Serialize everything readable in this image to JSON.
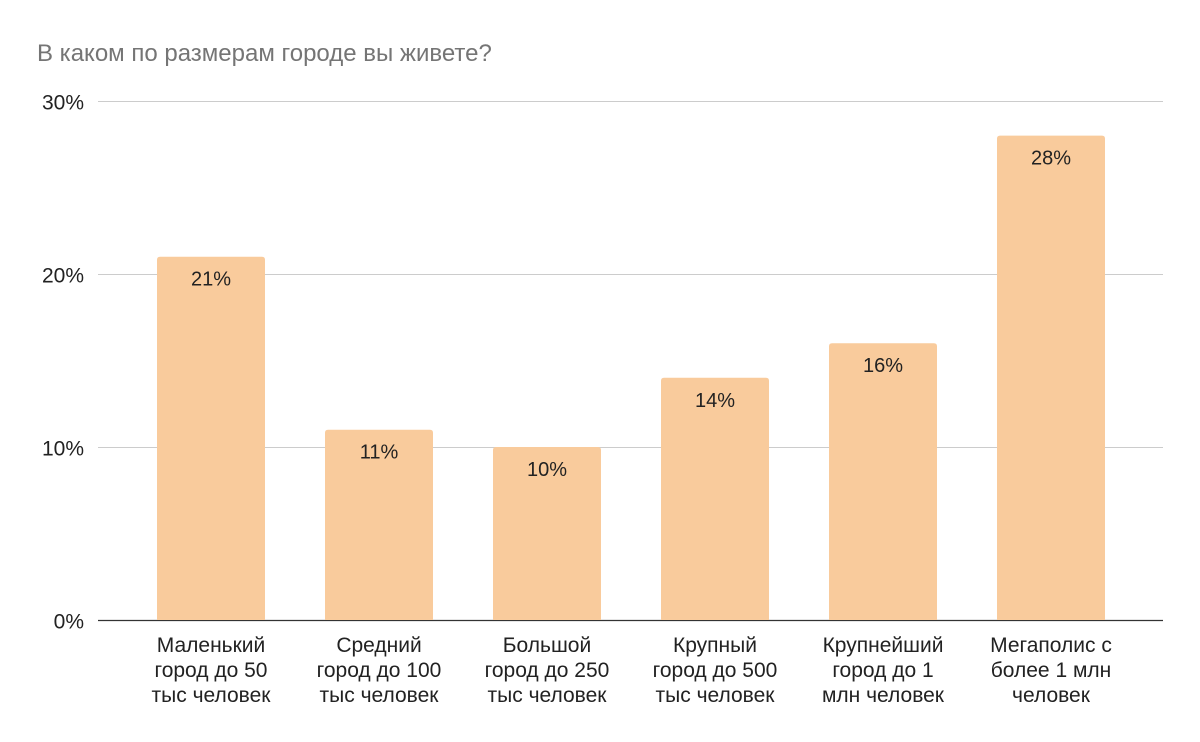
{
  "chart_data": {
    "type": "bar",
    "title": "В каком по размерам городе вы живете?",
    "xlabel": "",
    "ylabel": "",
    "ylim": [
      0,
      30
    ],
    "yticks": [
      0,
      10,
      20,
      30
    ],
    "ytick_labels": [
      "0%",
      "10%",
      "20%",
      "30%"
    ],
    "grid": true,
    "legend": "none",
    "categories": [
      [
        "Маленький",
        "город до 50",
        "тыс человек"
      ],
      [
        "Средний",
        "город до 100",
        "тыс человек"
      ],
      [
        "Большой",
        "город до 250",
        "тыс человек"
      ],
      [
        "Крупный",
        "город до 500",
        "тыс человек"
      ],
      [
        "Крупнейший",
        "город до 1",
        "млн человек"
      ],
      [
        "Мегаполис с",
        "более 1 млн",
        "человек"
      ]
    ],
    "values": [
      21,
      11,
      10,
      14,
      16,
      28
    ],
    "data_labels": [
      "21%",
      "11%",
      "10%",
      "14%",
      "16%",
      "28%"
    ],
    "colors": {
      "bar": "#F9CB9C",
      "grid": "#CCCCCC",
      "title": "#757575",
      "text": "#222222"
    }
  }
}
